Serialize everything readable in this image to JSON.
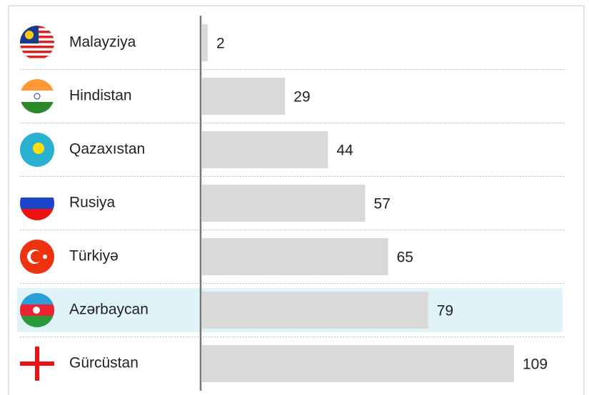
{
  "chart_data": {
    "type": "barh",
    "categories": [
      "Malayziya",
      "Hindistan",
      "Qazaxıstan",
      "Rusiya",
      "Türkiyə",
      "Azərbaycan",
      "Gürcüstan"
    ],
    "values": [
      2,
      29,
      44,
      57,
      65,
      79,
      109
    ],
    "color": "#d9d9d9",
    "highlight": "Azərbaycan",
    "highlight_color": "#dff3f8"
  }
}
